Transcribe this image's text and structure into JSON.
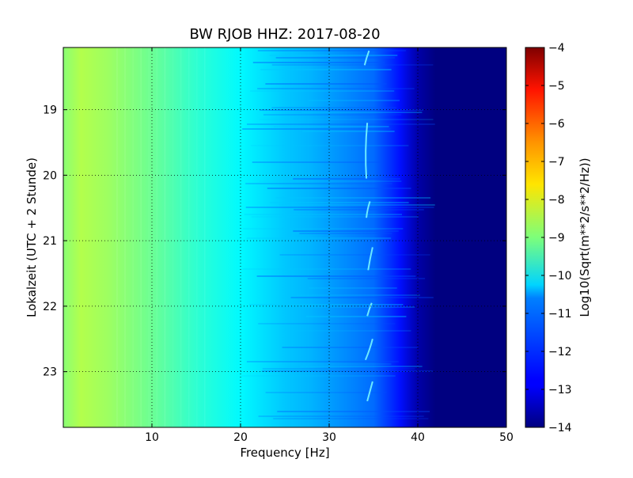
{
  "chart_data": {
    "type": "heatmap",
    "title": "BW RJOB HHZ: 2017-08-20",
    "xlabel": "Frequency [Hz]",
    "ylabel": "Lokalzeit (UTC + 2 Stunde)",
    "xlim": [
      0,
      50
    ],
    "ylim_hours": [
      18.05,
      23.85
    ],
    "y_axis_inverted": true,
    "x_ticks": [
      10,
      20,
      30,
      40,
      50
    ],
    "y_ticks": [
      19,
      20,
      21,
      22,
      23
    ],
    "grid": true,
    "colormap": "jet",
    "colorbar": {
      "label": "Log10(Sqrt(m**2/s**2/Hz))",
      "range": [
        -14,
        -4
      ],
      "ticks": [
        -4,
        -5,
        -6,
        -7,
        -8,
        -9,
        -10,
        -11,
        -12,
        -13,
        -14
      ]
    },
    "level_vs_frequency": {
      "frequency_hz": [
        0,
        2,
        5,
        10,
        15,
        20,
        25,
        28,
        30,
        32,
        35,
        38,
        40,
        42,
        50
      ],
      "log10_value": [
        -8.9,
        -8.5,
        -8.7,
        -9.2,
        -9.8,
        -10.3,
        -10.8,
        -11.0,
        -11.2,
        -11.4,
        -11.7,
        -12.6,
        -13.6,
        -14.0,
        -14.0
      ]
    },
    "tonal_line": {
      "frequency_hz": [
        34,
        34.5
      ],
      "description": "intermittent narrow-band signal near 34 Hz"
    }
  }
}
